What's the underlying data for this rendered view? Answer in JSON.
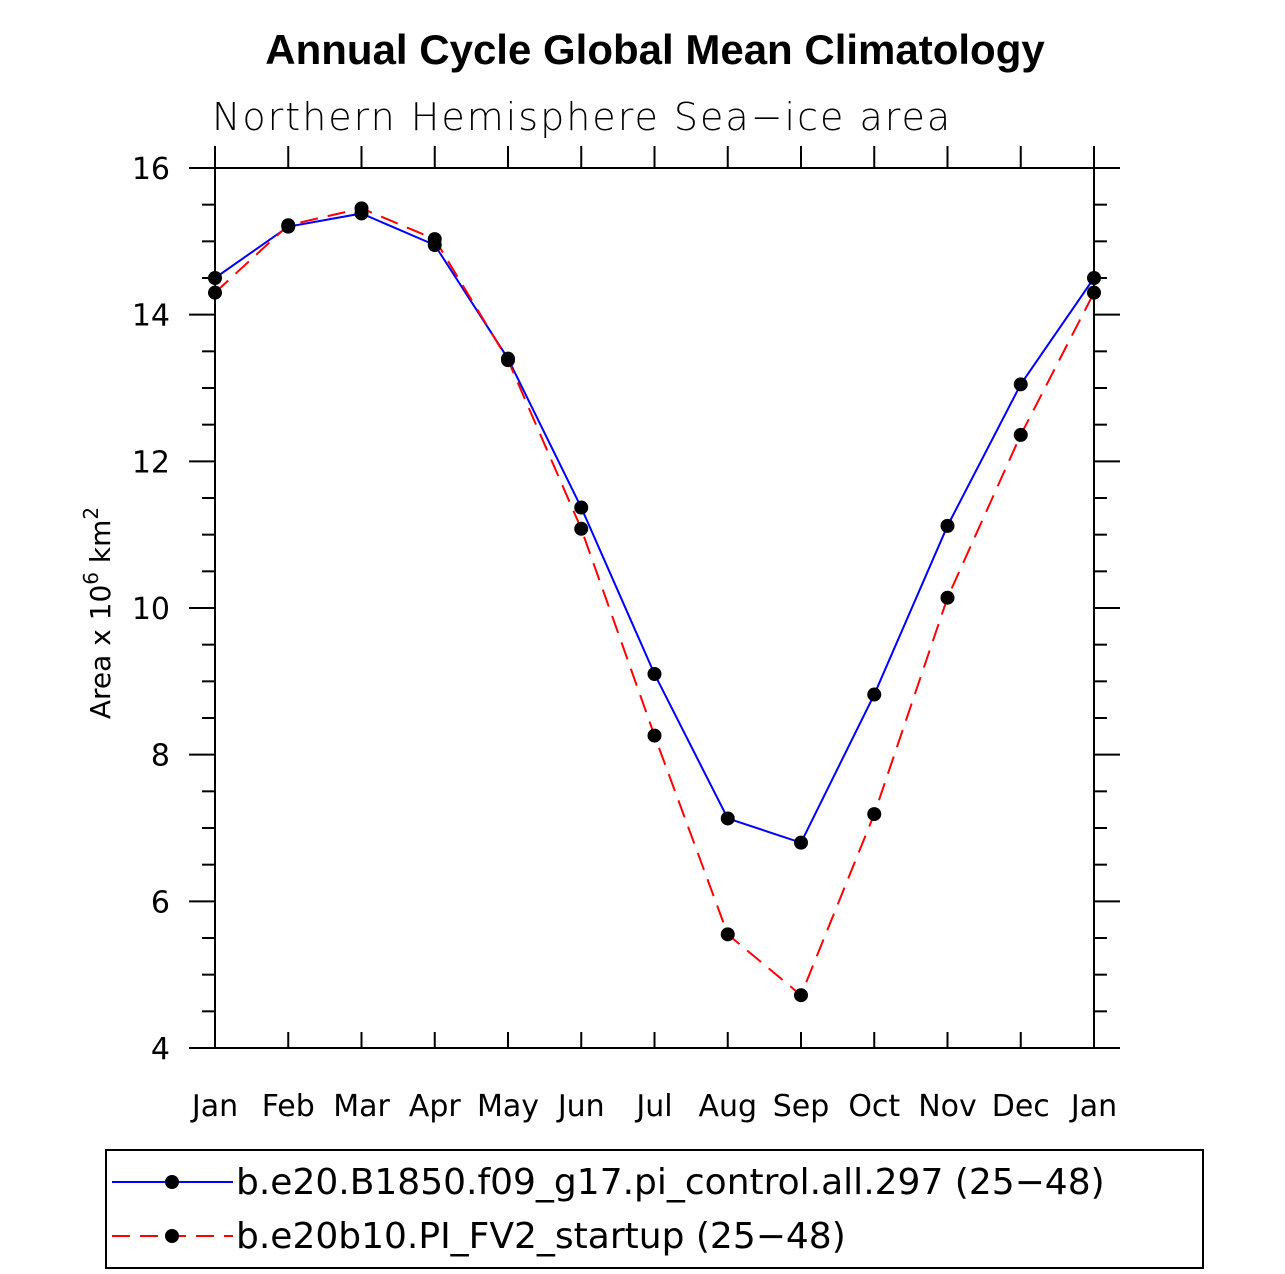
{
  "chart_data": {
    "type": "line",
    "title": "Annual Cycle Global Mean Climatology",
    "subtitle": "Northern Hemisphere Sea−ice area",
    "ylabel": "Area x 10⁶ km²",
    "ylabel_parts": {
      "base": "Area x 10",
      "exp1": "6",
      "mid": " km",
      "exp2": "2"
    },
    "xlabel": "",
    "categories": [
      "Jan",
      "Feb",
      "Mar",
      "Apr",
      "May",
      "Jun",
      "Jul",
      "Aug",
      "Sep",
      "Oct",
      "Nov",
      "Dec",
      "Jan"
    ],
    "ylim": [
      4,
      16
    ],
    "yticks": [
      4,
      6,
      8,
      10,
      12,
      14,
      16
    ],
    "yticks_labels": [
      "4",
      "6",
      "8",
      "10",
      "12",
      "14",
      "16"
    ],
    "grid": false,
    "legend_position": "bottom",
    "series": [
      {
        "name": "b.e20.B1850.f09_g17.pi_control.all.297 (25−48)",
        "color": "#0000ff",
        "dash": "solid",
        "values": [
          14.5,
          15.2,
          15.38,
          14.95,
          13.4,
          11.37,
          9.1,
          7.13,
          6.8,
          8.82,
          11.12,
          13.05,
          14.5
        ]
      },
      {
        "name": "b.e20b10.PI_FV2_startup (25−48)",
        "color": "#ff0000",
        "dash": "dashed",
        "values": [
          14.3,
          15.22,
          15.45,
          15.03,
          13.38,
          11.08,
          8.26,
          5.55,
          4.72,
          7.19,
          10.14,
          12.36,
          14.3
        ]
      }
    ]
  }
}
